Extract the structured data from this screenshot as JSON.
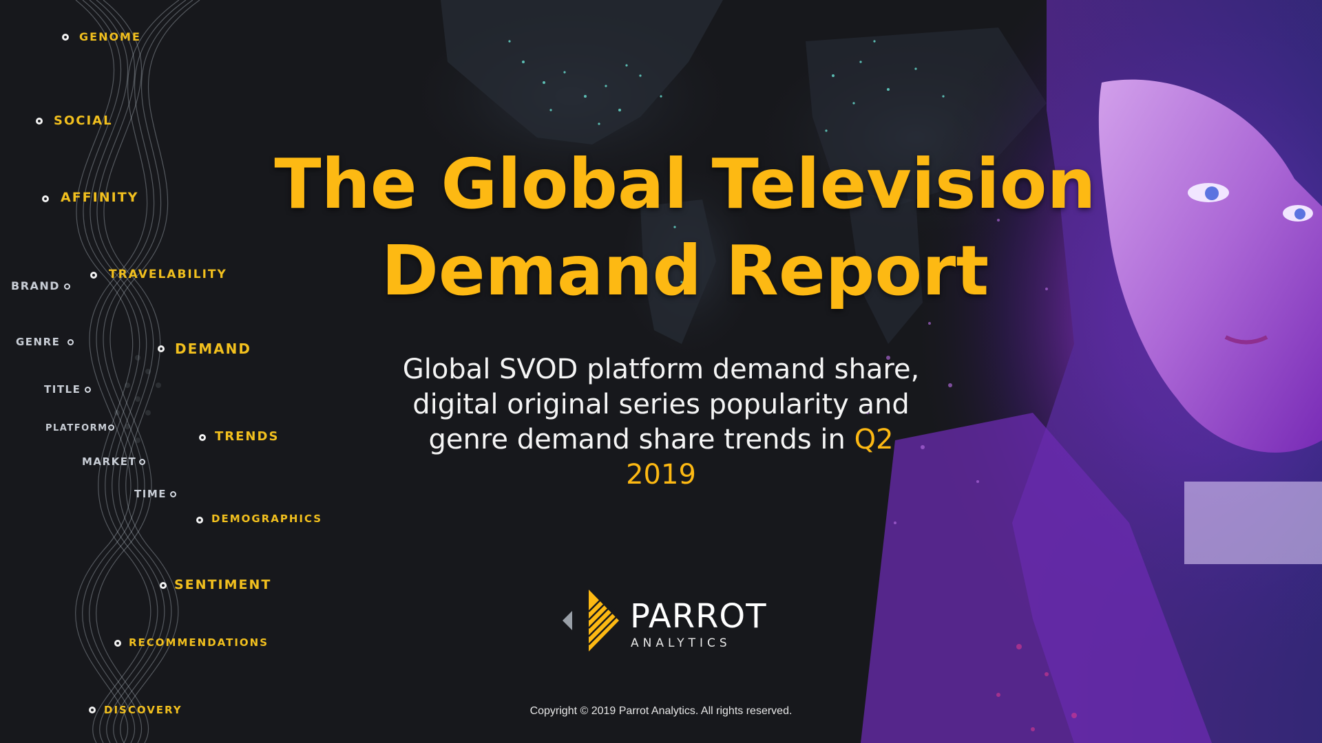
{
  "report": {
    "title_line1": "The Global Television",
    "title_line2": "Demand Report",
    "subtitle_main": "Global SVOD platform demand share, digital original series popularity and genre demand share trends in ",
    "subtitle_highlight": "Q2 2019",
    "copyright": "Copyright © 2019 Parrot Analytics. All rights reserved."
  },
  "logo": {
    "name": "PARROT",
    "sub": "ANALYTICS"
  },
  "helix_nodes": {
    "gold": [
      {
        "label": "GENOME"
      },
      {
        "label": "SOCIAL"
      },
      {
        "label": "AFFINITY"
      },
      {
        "label": "TRAVELABILITY"
      },
      {
        "label": "DEMAND"
      },
      {
        "label": "TRENDS"
      },
      {
        "label": "DEMOGRAPHICS"
      },
      {
        "label": "SENTIMENT"
      },
      {
        "label": "RECOMMENDATIONS"
      },
      {
        "label": "DISCOVERY"
      }
    ],
    "grey": [
      {
        "label": "BRAND"
      },
      {
        "label": "GENRE"
      },
      {
        "label": "TITLE"
      },
      {
        "label": "PLATFORM"
      },
      {
        "label": "MARKET"
      },
      {
        "label": "TIME"
      }
    ]
  },
  "colors": {
    "accent": "#fdb913",
    "background": "#17181c",
    "portrait_tint": "#9b2fd6"
  }
}
